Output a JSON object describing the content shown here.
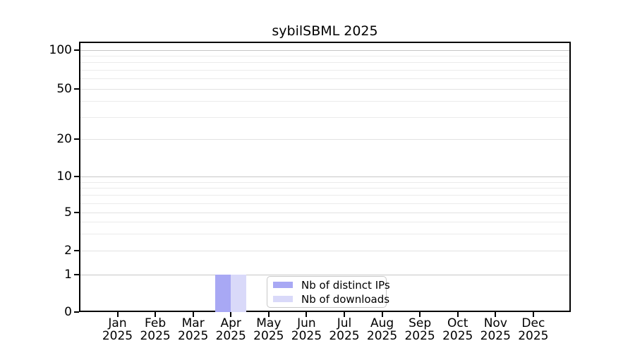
{
  "window": {
    "background": "#ffffff"
  },
  "chart_data": {
    "type": "bar",
    "title": "sybilSBML 2025",
    "x": {
      "categories": [
        "Jan",
        "Feb",
        "Mar",
        "Apr",
        "May",
        "Jun",
        "Jul",
        "Aug",
        "Sep",
        "Oct",
        "Nov",
        "Dec"
      ],
      "year_label": "2025"
    },
    "y": {
      "tick_labels": [
        "100",
        "50",
        "20",
        "10",
        "5",
        "2",
        "1",
        "0"
      ],
      "tick_values": [
        100,
        50,
        20,
        10,
        5,
        2,
        1,
        0
      ],
      "minor_grid_values": [
        3,
        4,
        6,
        7,
        8,
        9,
        30,
        40,
        60,
        70,
        80,
        90
      ],
      "major_grid_values": [
        1,
        10,
        100
      ],
      "scale": "log-like",
      "range": [
        0,
        100
      ]
    },
    "series": [
      {
        "name": "Nb of distinct IPs",
        "color": "#a8a8f4",
        "values": [
          0,
          0,
          0,
          1,
          0,
          0,
          0,
          0,
          0,
          0,
          0,
          0
        ]
      },
      {
        "name": "Nb of downloads",
        "color": "#d9d9f9",
        "values": [
          0,
          0,
          0,
          1,
          0,
          0,
          0,
          0,
          0,
          0,
          0,
          0
        ]
      }
    ],
    "legend": {
      "position": "inside-bottom-center",
      "entries": [
        "Nb of distinct IPs",
        "Nb of downloads"
      ]
    },
    "grid": {
      "horizontal": true,
      "major_color": "#c6c6c6",
      "mid_color": "#e2e2e2",
      "minor_color": "#ebebeb"
    },
    "axis_color": "#000000"
  }
}
